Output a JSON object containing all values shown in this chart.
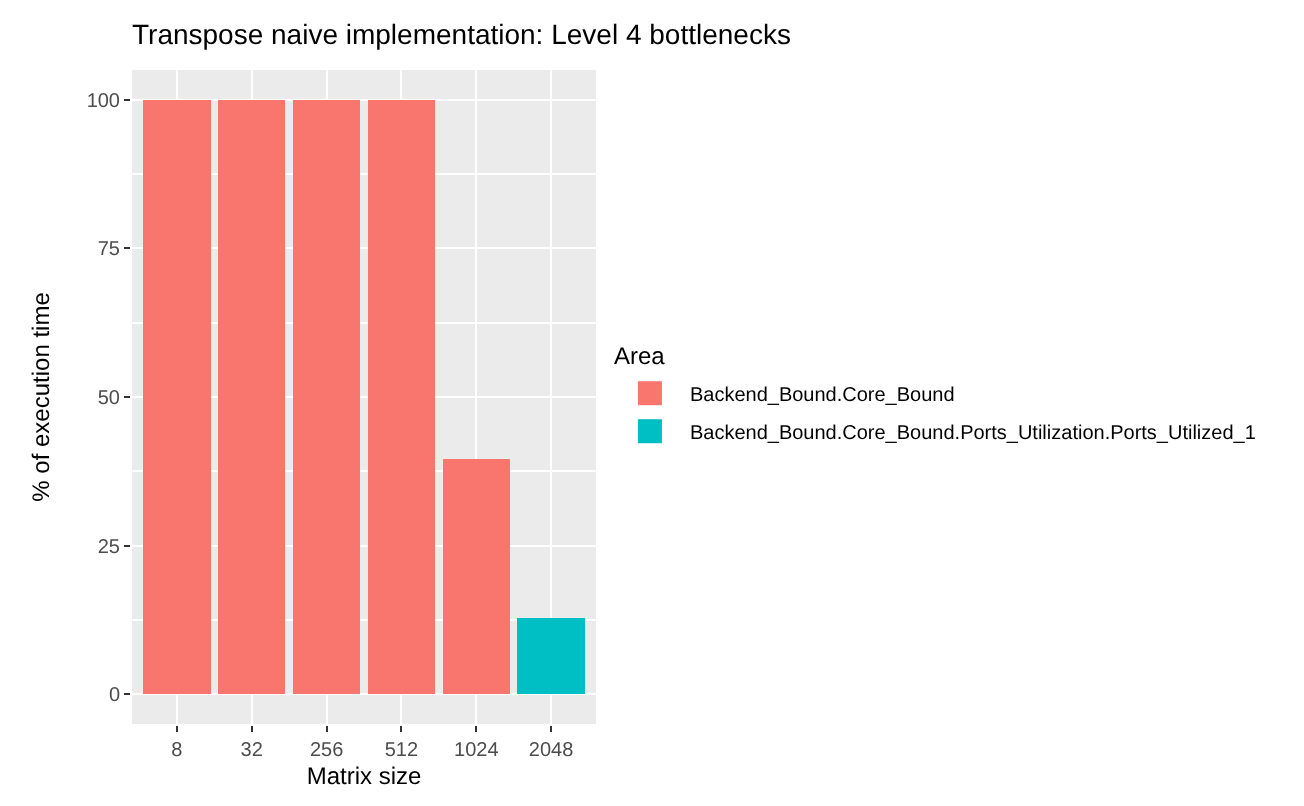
{
  "chart_data": {
    "type": "bar",
    "title": "Transpose naive implementation: Level 4 bottlenecks",
    "xlabel": "Matrix size",
    "ylabel": "% of execution time",
    "legend_title": "Area",
    "categories": [
      "8",
      "32",
      "256",
      "512",
      "1024",
      "2048"
    ],
    "series": [
      {
        "name": "Backend_Bound.Core_Bound",
        "color": "#f8766d",
        "values": [
          100,
          100,
          100,
          100,
          39.5,
          null
        ]
      },
      {
        "name": "Backend_Bound.Core_Bound.Ports_Utilization.Ports_Utilized_1",
        "color": "#00bfc4",
        "values": [
          null,
          null,
          null,
          null,
          null,
          12.8
        ]
      }
    ],
    "stacked": true,
    "ylim": [
      -5,
      105
    ],
    "yticks": [
      0,
      25,
      50,
      75,
      100
    ],
    "grid": true,
    "legend": "right"
  }
}
